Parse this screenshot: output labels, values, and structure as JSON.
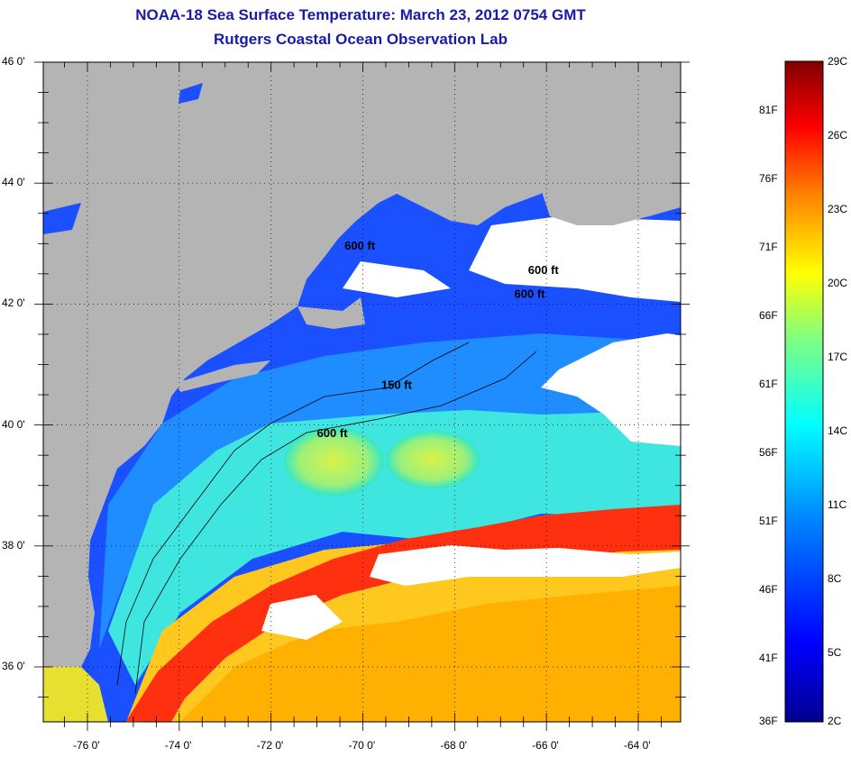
{
  "title": "NOAA-18 Sea Surface Temperature:  March 23, 2012 0754 GMT",
  "subtitle": "Rutgers Coastal Ocean Observation Lab",
  "axes": {
    "lat_labels": [
      {
        "value": 46,
        "text": "46 0'"
      },
      {
        "value": 44,
        "text": "44 0'"
      },
      {
        "value": 42,
        "text": "42 0'"
      },
      {
        "value": 40,
        "text": "40 0'"
      },
      {
        "value": 38,
        "text": "38 0'"
      },
      {
        "value": 36,
        "text": "36 0'"
      }
    ],
    "lon_labels": [
      {
        "value": -76,
        "text": "-76 0'"
      },
      {
        "value": -74,
        "text": "-74 0'"
      },
      {
        "value": -72,
        "text": "-72 0'"
      },
      {
        "value": -70,
        "text": "-70 0'"
      },
      {
        "value": -68,
        "text": "-68 0'"
      },
      {
        "value": -66,
        "text": "-66 0'"
      },
      {
        "value": -64,
        "text": "-64 0'"
      }
    ],
    "lat_range": [
      35,
      46
    ],
    "lon_range": [
      -77,
      -63
    ],
    "grid": "dotted"
  },
  "contour_labels": [
    {
      "text": "600 ft",
      "lon": -71.0,
      "lat": 39.8
    },
    {
      "text": "150 ft",
      "lon": -69.6,
      "lat": 40.6
    },
    {
      "text": "600 ft",
      "lon": -70.4,
      "lat": 42.9
    },
    {
      "text": "600 ft",
      "lon": -66.4,
      "lat": 42.5
    },
    {
      "text": "600 ft",
      "lon": -66.7,
      "lat": 42.1
    }
  ],
  "colorbar": {
    "fahrenheit": [
      "81F",
      "76F",
      "71F",
      "66F",
      "61F",
      "56F",
      "51F",
      "46F",
      "41F",
      "36F"
    ],
    "celsius": [
      "29C",
      "26C",
      "23C",
      "20C",
      "17C",
      "14C",
      "11C",
      "8C",
      "5C",
      "2C"
    ],
    "range_c": [
      2,
      29
    ],
    "colors": [
      "#00008f",
      "#0000ff",
      "#0080ff",
      "#00ffff",
      "#80ff80",
      "#ffff00",
      "#ff8000",
      "#ff0000",
      "#800000"
    ]
  },
  "colors": {
    "land": "#b4b4b4",
    "cloud": "#ffffff",
    "title": "#1a1aa8"
  }
}
